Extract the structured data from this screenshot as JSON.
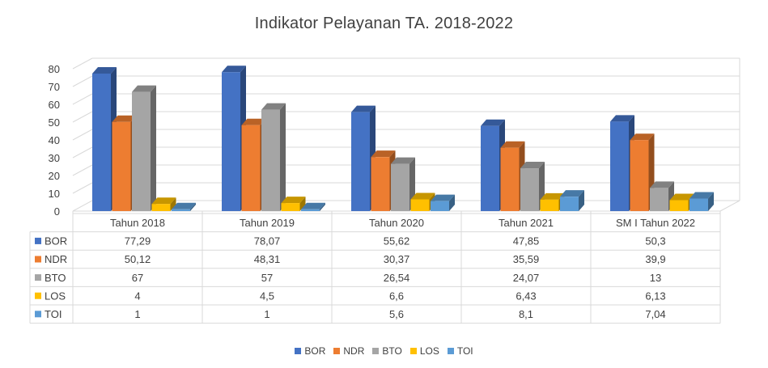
{
  "chart_data": {
    "type": "bar",
    "title": "Indikator Pelayanan TA. 2018-2022",
    "categories": [
      "Tahun 2018",
      "Tahun 2019",
      "Tahun 2020",
      "Tahun 2021",
      "SM I Tahun 2022"
    ],
    "series": [
      {
        "name": "BOR",
        "color": "#4472C4",
        "values": [
          77.29,
          78.07,
          55.62,
          47.85,
          50.3
        ],
        "labels": [
          "77,29",
          "78,07",
          "55,62",
          "47,85",
          "50,3"
        ]
      },
      {
        "name": "NDR",
        "color": "#ED7D31",
        "values": [
          50.12,
          48.31,
          30.37,
          35.59,
          39.9
        ],
        "labels": [
          "50,12",
          "48,31",
          "30,37",
          "35,59",
          "39,9"
        ]
      },
      {
        "name": "BTO",
        "color": "#A5A5A5",
        "values": [
          67,
          57,
          26.54,
          24.07,
          13
        ],
        "labels": [
          "67",
          "57",
          "26,54",
          "24,07",
          "13"
        ]
      },
      {
        "name": "LOS",
        "color": "#FFC000",
        "values": [
          4,
          4.5,
          6.6,
          6.43,
          6.13
        ],
        "labels": [
          "4",
          "4,5",
          "6,6",
          "6,43",
          "6,13"
        ]
      },
      {
        "name": "TOI",
        "color": "#5B9BD5",
        "values": [
          1,
          1,
          5.6,
          8.1,
          7.04
        ],
        "labels": [
          "1",
          "1",
          "5,6",
          "8,1",
          "7,04"
        ]
      }
    ],
    "yticks": [
      "0",
      "10",
      "20",
      "30",
      "40",
      "50",
      "60",
      "70",
      "80"
    ],
    "ylim": [
      0,
      80
    ],
    "grid": true,
    "legend_position": "bottom",
    "data_table": true,
    "style": "3d-clustered-column"
  }
}
